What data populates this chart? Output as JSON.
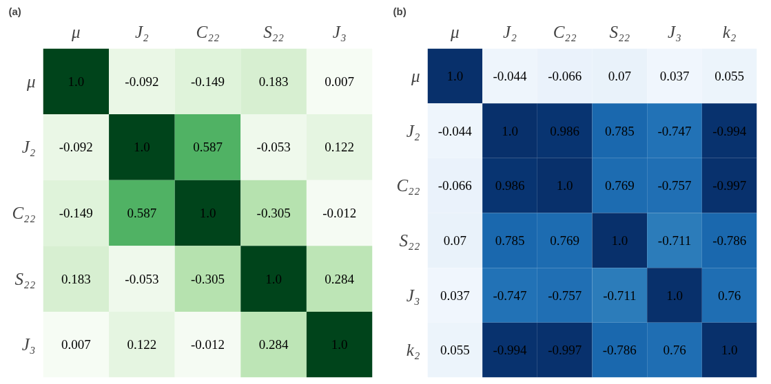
{
  "chart_data": [
    {
      "type": "heatmap",
      "title": "(a)",
      "color": "#00441b",
      "categories": [
        "μ",
        "J₂",
        "C₂₂",
        "S₂₂",
        "J₃"
      ],
      "y_categories": [
        "μ",
        "J₂",
        "C₂₂",
        "S₂₂",
        "J₃"
      ],
      "cells": [
        [
          1.0,
          -0.092,
          -0.149,
          0.183,
          0.007
        ],
        [
          -0.092,
          1.0,
          0.587,
          -0.053,
          0.122
        ],
        [
          -0.149,
          0.587,
          1.0,
          -0.305,
          -0.012
        ],
        [
          0.183,
          -0.053,
          -0.305,
          1.0,
          0.284
        ],
        [
          0.007,
          0.122,
          -0.012,
          0.284,
          1.0
        ]
      ],
      "cell_labels": [
        [
          "1.0",
          "-0.092",
          "-0.149",
          "0.183",
          "0.007"
        ],
        [
          "-0.092",
          "1.0",
          "0.587",
          "-0.053",
          "0.122"
        ],
        [
          "-0.149",
          "0.587",
          "1.0",
          "-0.305",
          "-0.012"
        ],
        [
          "0.183",
          "-0.053",
          "-0.305",
          "1.0",
          "0.284"
        ],
        [
          "0.007",
          "0.122",
          "-0.012",
          "0.284",
          "1.0"
        ]
      ]
    },
    {
      "type": "heatmap",
      "title": "(b)",
      "color": "#08306b",
      "categories": [
        "μ",
        "J₂",
        "C₂₂",
        "S₂₂",
        "J₃",
        "k₂"
      ],
      "y_categories": [
        "μ",
        "J₂",
        "C₂₂",
        "S₂₂",
        "J₃",
        "k₂"
      ],
      "cells": [
        [
          1.0,
          -0.044,
          -0.066,
          0.07,
          0.037,
          0.055
        ],
        [
          -0.044,
          1.0,
          0.986,
          0.785,
          -0.747,
          -0.994
        ],
        [
          -0.066,
          0.986,
          1.0,
          0.769,
          -0.757,
          -0.997
        ],
        [
          0.07,
          0.785,
          0.769,
          1.0,
          -0.711,
          -0.786
        ],
        [
          0.037,
          -0.747,
          -0.757,
          -0.711,
          1.0,
          0.76
        ],
        [
          0.055,
          -0.994,
          -0.997,
          -0.786,
          0.76,
          1.0
        ]
      ],
      "cell_labels": [
        [
          "1.0",
          "-0.044",
          "-0.066",
          "0.07",
          "0.037",
          "0.055"
        ],
        [
          "-0.044",
          "1.0",
          "0.986",
          "0.785",
          "-0.747",
          "-0.994"
        ],
        [
          "-0.066",
          "0.986",
          "1.0",
          "0.769",
          "-0.757",
          "-0.997"
        ],
        [
          "0.07",
          "0.785",
          "0.769",
          "1.0",
          "-0.711",
          "-0.786"
        ],
        [
          "0.037",
          "-0.747",
          "-0.757",
          "-0.711",
          "1.0",
          "0.76"
        ],
        [
          "0.055",
          "-0.994",
          "-0.997",
          "-0.786",
          "0.76",
          "1.0"
        ]
      ]
    }
  ]
}
